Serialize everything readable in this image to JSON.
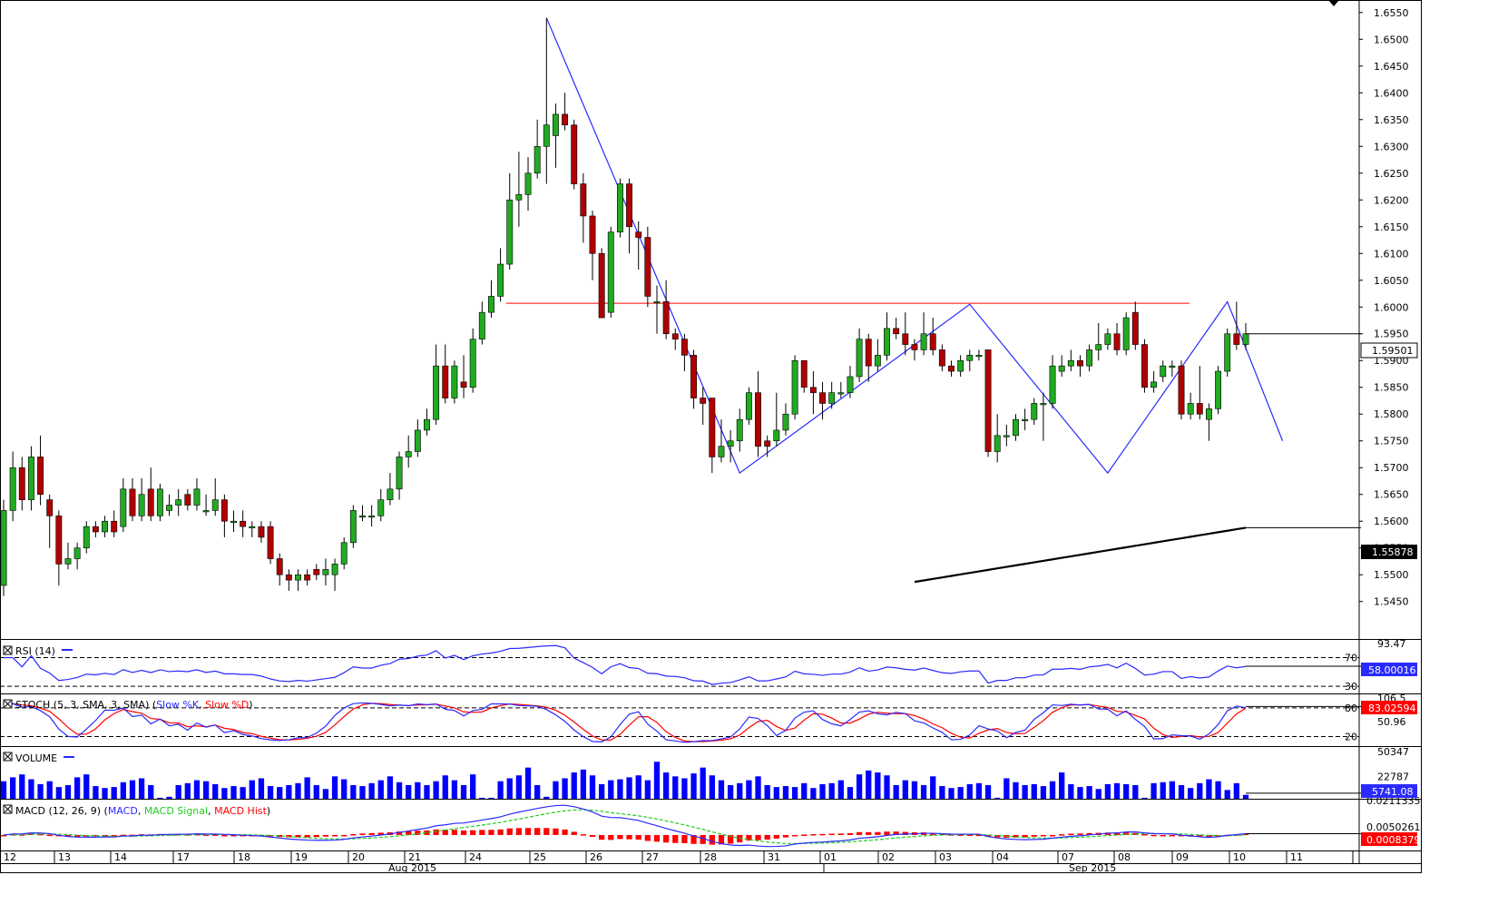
{
  "chart_data": [
    {
      "type": "candlestick",
      "panel": "price",
      "title": "",
      "y_ticks": [
        "1.6550",
        "1.6500",
        "1.6450",
        "1.6400",
        "1.6350",
        "1.6300",
        "1.6250",
        "1.6200",
        "1.6150",
        "1.6100",
        "1.6050",
        "1.6000",
        "1.5950",
        "1.5900",
        "1.5850",
        "1.5800",
        "1.5750",
        "1.5700",
        "1.5650",
        "1.5600",
        "1.5550",
        "1.5500",
        "1.5450"
      ],
      "ylim": [
        1.538,
        1.657
      ],
      "current_price_label": "1.59501",
      "current_price": 1.59501,
      "ma_label": "1.55878",
      "ma_value": 1.55878,
      "resistance_level": 1.6007,
      "candles": [
        [
          1.548,
          1.562,
          1.546,
          1.564
        ],
        [
          1.562,
          1.57,
          1.56,
          1.573
        ],
        [
          1.57,
          1.564,
          1.562,
          1.572
        ],
        [
          1.564,
          1.572,
          1.562,
          1.574
        ],
        [
          1.572,
          1.565,
          1.563,
          1.576
        ],
        [
          1.564,
          1.561,
          1.555,
          1.565
        ],
        [
          1.561,
          1.552,
          1.548,
          1.562
        ],
        [
          1.552,
          1.553,
          1.551,
          1.556
        ],
        [
          1.553,
          1.555,
          1.551,
          1.556
        ],
        [
          1.555,
          1.559,
          1.554,
          1.56
        ],
        [
          1.559,
          1.558,
          1.557,
          1.56
        ],
        [
          1.558,
          1.56,
          1.557,
          1.561
        ],
        [
          1.56,
          1.558,
          1.557,
          1.562
        ],
        [
          1.559,
          1.566,
          1.558,
          1.568
        ],
        [
          1.566,
          1.561,
          1.56,
          1.568
        ],
        [
          1.561,
          1.565,
          1.56,
          1.568
        ],
        [
          1.566,
          1.561,
          1.56,
          1.57
        ],
        [
          1.561,
          1.566,
          1.56,
          1.567
        ],
        [
          1.562,
          1.563,
          1.561,
          1.565
        ],
        [
          1.563,
          1.564,
          1.561,
          1.566
        ],
        [
          1.565,
          1.563,
          1.562,
          1.566
        ],
        [
          1.563,
          1.566,
          1.562,
          1.568
        ],
        [
          1.562,
          1.562,
          1.561,
          1.565
        ],
        [
          1.562,
          1.564,
          1.561,
          1.568
        ],
        [
          1.564,
          1.56,
          1.557,
          1.565
        ],
        [
          1.56,
          1.56,
          1.558,
          1.562
        ],
        [
          1.56,
          1.559,
          1.557,
          1.562
        ],
        [
          1.559,
          1.559,
          1.557,
          1.56
        ],
        [
          1.559,
          1.557,
          1.556,
          1.56
        ],
        [
          1.559,
          1.553,
          1.552,
          1.56
        ],
        [
          1.553,
          1.55,
          1.548,
          1.554
        ],
        [
          1.55,
          1.549,
          1.547,
          1.551
        ],
        [
          1.549,
          1.55,
          1.547,
          1.551
        ],
        [
          1.55,
          1.549,
          1.548,
          1.551
        ],
        [
          1.551,
          1.55,
          1.549,
          1.552
        ],
        [
          1.55,
          1.551,
          1.548,
          1.553
        ],
        [
          1.55,
          1.552,
          1.547,
          1.553
        ],
        [
          1.552,
          1.556,
          1.551,
          1.557
        ],
        [
          1.556,
          1.562,
          1.555,
          1.563
        ],
        [
          1.561,
          1.561,
          1.56,
          1.563
        ],
        [
          1.561,
          1.561,
          1.559,
          1.563
        ],
        [
          1.561,
          1.564,
          1.56,
          1.566
        ],
        [
          1.564,
          1.566,
          1.563,
          1.569
        ],
        [
          1.566,
          1.572,
          1.564,
          1.573
        ],
        [
          1.572,
          1.573,
          1.57,
          1.576
        ],
        [
          1.573,
          1.577,
          1.572,
          1.579
        ],
        [
          1.577,
          1.579,
          1.576,
          1.581
        ],
        [
          1.579,
          1.589,
          1.578,
          1.593
        ],
        [
          1.589,
          1.583,
          1.582,
          1.593
        ],
        [
          1.583,
          1.589,
          1.582,
          1.59
        ],
        [
          1.586,
          1.585,
          1.583,
          1.591
        ],
        [
          1.585,
          1.594,
          1.584,
          1.596
        ],
        [
          1.594,
          1.599,
          1.593,
          1.601
        ],
        [
          1.599,
          1.602,
          1.598,
          1.605
        ],
        [
          1.602,
          1.608,
          1.601,
          1.611
        ],
        [
          1.608,
          1.62,
          1.607,
          1.625
        ],
        [
          1.62,
          1.621,
          1.615,
          1.629
        ],
        [
          1.621,
          1.625,
          1.618,
          1.628
        ],
        [
          1.625,
          1.63,
          1.624,
          1.635
        ],
        [
          1.63,
          1.634,
          1.623,
          1.654
        ],
        [
          1.632,
          1.636,
          1.626,
          1.638
        ],
        [
          1.636,
          1.634,
          1.633,
          1.64
        ],
        [
          1.634,
          1.623,
          1.622,
          1.635
        ],
        [
          1.623,
          1.617,
          1.612,
          1.625
        ],
        [
          1.617,
          1.61,
          1.605,
          1.618
        ],
        [
          1.61,
          1.598,
          1.598,
          1.611
        ],
        [
          1.599,
          1.614,
          1.598,
          1.615
        ],
        [
          1.614,
          1.623,
          1.613,
          1.624
        ],
        [
          1.623,
          1.615,
          1.61,
          1.624
        ],
        [
          1.614,
          1.613,
          1.607,
          1.616
        ],
        [
          1.613,
          1.602,
          1.6,
          1.615
        ],
        [
          1.601,
          1.601,
          1.595,
          1.604
        ],
        [
          1.601,
          1.595,
          1.594,
          1.605
        ],
        [
          1.595,
          1.594,
          1.592,
          1.596
        ],
        [
          1.594,
          1.591,
          1.588,
          1.595
        ],
        [
          1.591,
          1.583,
          1.581,
          1.592
        ],
        [
          1.583,
          1.582,
          1.578,
          1.585
        ],
        [
          1.583,
          1.572,
          1.569,
          1.583
        ],
        [
          1.572,
          1.574,
          1.571,
          1.579
        ],
        [
          1.574,
          1.575,
          1.571,
          1.577
        ],
        [
          1.575,
          1.579,
          1.573,
          1.581
        ],
        [
          1.579,
          1.584,
          1.578,
          1.585
        ],
        [
          1.584,
          1.574,
          1.572,
          1.588
        ],
        [
          1.575,
          1.574,
          1.572,
          1.576
        ],
        [
          1.575,
          1.577,
          1.574,
          1.584
        ],
        [
          1.577,
          1.58,
          1.576,
          1.582
        ],
        [
          1.58,
          1.59,
          1.579,
          1.591
        ],
        [
          1.59,
          1.585,
          1.584,
          1.59
        ],
        [
          1.585,
          1.584,
          1.58,
          1.588
        ],
        [
          1.584,
          1.582,
          1.579,
          1.586
        ],
        [
          1.582,
          1.584,
          1.581,
          1.586
        ],
        [
          1.584,
          1.584,
          1.583,
          1.586
        ],
        [
          1.584,
          1.587,
          1.583,
          1.589
        ],
        [
          1.587,
          1.594,
          1.586,
          1.596
        ],
        [
          1.594,
          1.589,
          1.586,
          1.595
        ],
        [
          1.589,
          1.591,
          1.588,
          1.594
        ],
        [
          1.591,
          1.596,
          1.59,
          1.599
        ],
        [
          1.596,
          1.595,
          1.594,
          1.598
        ],
        [
          1.595,
          1.593,
          1.591,
          1.599
        ],
        [
          1.593,
          1.592,
          1.59,
          1.594
        ],
        [
          1.592,
          1.595,
          1.591,
          1.599
        ],
        [
          1.595,
          1.592,
          1.591,
          1.598
        ],
        [
          1.592,
          1.589,
          1.588,
          1.593
        ],
        [
          1.589,
          1.588,
          1.587,
          1.59
        ],
        [
          1.588,
          1.59,
          1.587,
          1.591
        ],
        [
          1.59,
          1.591,
          1.588,
          1.592
        ],
        [
          1.591,
          1.591,
          1.59,
          1.592
        ],
        [
          1.592,
          1.573,
          1.572,
          1.592
        ],
        [
          1.573,
          1.576,
          1.571,
          1.58
        ],
        [
          1.576,
          1.576,
          1.574,
          1.578
        ],
        [
          1.576,
          1.579,
          1.575,
          1.58
        ],
        [
          1.579,
          1.579,
          1.577,
          1.581
        ],
        [
          1.579,
          1.582,
          1.578,
          1.583
        ],
        [
          1.582,
          1.582,
          1.575,
          1.584
        ],
        [
          1.582,
          1.589,
          1.581,
          1.591
        ],
        [
          1.588,
          1.589,
          1.587,
          1.591
        ],
        [
          1.589,
          1.59,
          1.588,
          1.592
        ],
        [
          1.59,
          1.589,
          1.587,
          1.591
        ],
        [
          1.589,
          1.592,
          1.588,
          1.593
        ],
        [
          1.592,
          1.593,
          1.59,
          1.597
        ],
        [
          1.593,
          1.595,
          1.592,
          1.596
        ],
        [
          1.595,
          1.592,
          1.591,
          1.597
        ],
        [
          1.592,
          1.598,
          1.591,
          1.599
        ],
        [
          1.599,
          1.593,
          1.592,
          1.601
        ],
        [
          1.593,
          1.585,
          1.584,
          1.594
        ],
        [
          1.585,
          1.586,
          1.584,
          1.588
        ],
        [
          1.587,
          1.589,
          1.586,
          1.59
        ],
        [
          1.589,
          1.589,
          1.587,
          1.59
        ],
        [
          1.589,
          1.58,
          1.579,
          1.59
        ],
        [
          1.58,
          1.582,
          1.579,
          1.584
        ],
        [
          1.582,
          1.58,
          1.579,
          1.589
        ],
        [
          1.579,
          1.581,
          1.575,
          1.582
        ],
        [
          1.581,
          1.588,
          1.58,
          1.589
        ],
        [
          1.588,
          1.595,
          1.587,
          1.596
        ],
        [
          1.595,
          1.593,
          1.592,
          1.601
        ],
        [
          1.593,
          1.595,
          1.592,
          1.597
        ]
      ]
    },
    {
      "type": "line",
      "panel": "rsi",
      "legend": "RSI (14)",
      "y_ticks": [
        "93.47",
        "70",
        "30"
      ],
      "levels": [
        70,
        30
      ],
      "value_label": "58.00016",
      "ylim": [
        20,
        93.47
      ]
    },
    {
      "type": "line",
      "panel": "stochastic",
      "legend": {
        "prefix": "STOCH (5, 3, SMA, 3, SMA) (",
        "k": "Slow %K",
        "sep": ", ",
        "d": "Slow %D",
        "suffix": ")"
      },
      "y_ticks": [
        "106.5",
        "80",
        "50.96",
        "20"
      ],
      "levels": [
        80,
        20
      ],
      "value_label": "83.02594",
      "ylim": [
        0,
        106.5
      ]
    },
    {
      "type": "bar",
      "panel": "volume",
      "legend": "VOLUME",
      "y_ticks": [
        "50347",
        "22787"
      ],
      "value_label": "5741.08",
      "ylim": [
        0,
        50347
      ],
      "values": [
        18000,
        22000,
        25000,
        20000,
        15000,
        18000,
        12000,
        14000,
        22000,
        25000,
        13000,
        11000,
        12000,
        17000,
        19000,
        21000,
        14000,
        1000,
        2000,
        14000,
        16000,
        19000,
        18000,
        15000,
        11000,
        13000,
        12000,
        19000,
        21000,
        13000,
        12000,
        14000,
        16000,
        22000,
        14000,
        10000,
        23000,
        20000,
        14000,
        13000,
        16000,
        19000,
        23000,
        17000,
        14000,
        17000,
        14000,
        18000,
        24000,
        19000,
        14000,
        25000,
        1000,
        1000,
        18000,
        21000,
        24000,
        32000,
        14000,
        2000,
        18000,
        21000,
        27000,
        30000,
        24000,
        15000,
        19000,
        20000,
        22000,
        24000,
        19000,
        38000,
        27000,
        23000,
        21000,
        26000,
        32000,
        24000,
        19000,
        14000,
        16000,
        19000,
        23000,
        14000,
        12000,
        13000,
        12000,
        16000,
        11000,
        15000,
        16000,
        19000,
        12000,
        25000,
        29000,
        27000,
        24000,
        14000,
        19000,
        18000,
        14000,
        23000,
        13000,
        11000,
        12000,
        15000,
        16000,
        14000,
        1000,
        21000,
        17000,
        14000,
        15000,
        13000,
        18000,
        27000,
        15000,
        12000,
        13000,
        10000,
        15000,
        16000,
        15000,
        14000,
        1000,
        16000,
        17000,
        18000,
        14000,
        11000,
        16000,
        20000,
        18000,
        9000,
        16000,
        4000
      ]
    },
    {
      "type": "line",
      "panel": "macd",
      "legend": {
        "prefix": "MACD (12, 26, 9) (",
        "macd": "MACD",
        "sep1": ", ",
        "signal": "MACD Signal",
        "sep2": ", ",
        "hist": "MACD Hist",
        "suffix": ")"
      },
      "y_ticks": [
        "0.0211335",
        "0.0050261"
      ],
      "value_label": "0.0008379",
      "ylim": [
        -0.0095,
        0.0211335
      ]
    }
  ],
  "x_axis": {
    "day_labels": [
      "12",
      "13",
      "14",
      "17",
      "18",
      "19",
      "20",
      "21",
      "24",
      "25",
      "26",
      "27",
      "28",
      "31",
      "01",
      "02",
      "03",
      "04",
      "07",
      "08",
      "09",
      "10",
      "11"
    ],
    "month_labels": [
      "Aug 2015",
      "Sep 2015"
    ]
  },
  "colors": {
    "up_candle": "#22aa22",
    "down_candle": "#b00000",
    "trendline": "#2a2aff",
    "resistance": "#ff0000",
    "moving_average": "#000000",
    "rsi_line": "#2a2aff",
    "stoch_k": "#2a2aff",
    "stoch_d": "#ff0000",
    "volume_bar": "#0000ff",
    "macd_line": "#2a2aff",
    "macd_signal": "#22cc22",
    "macd_hist": "#ff0000"
  }
}
